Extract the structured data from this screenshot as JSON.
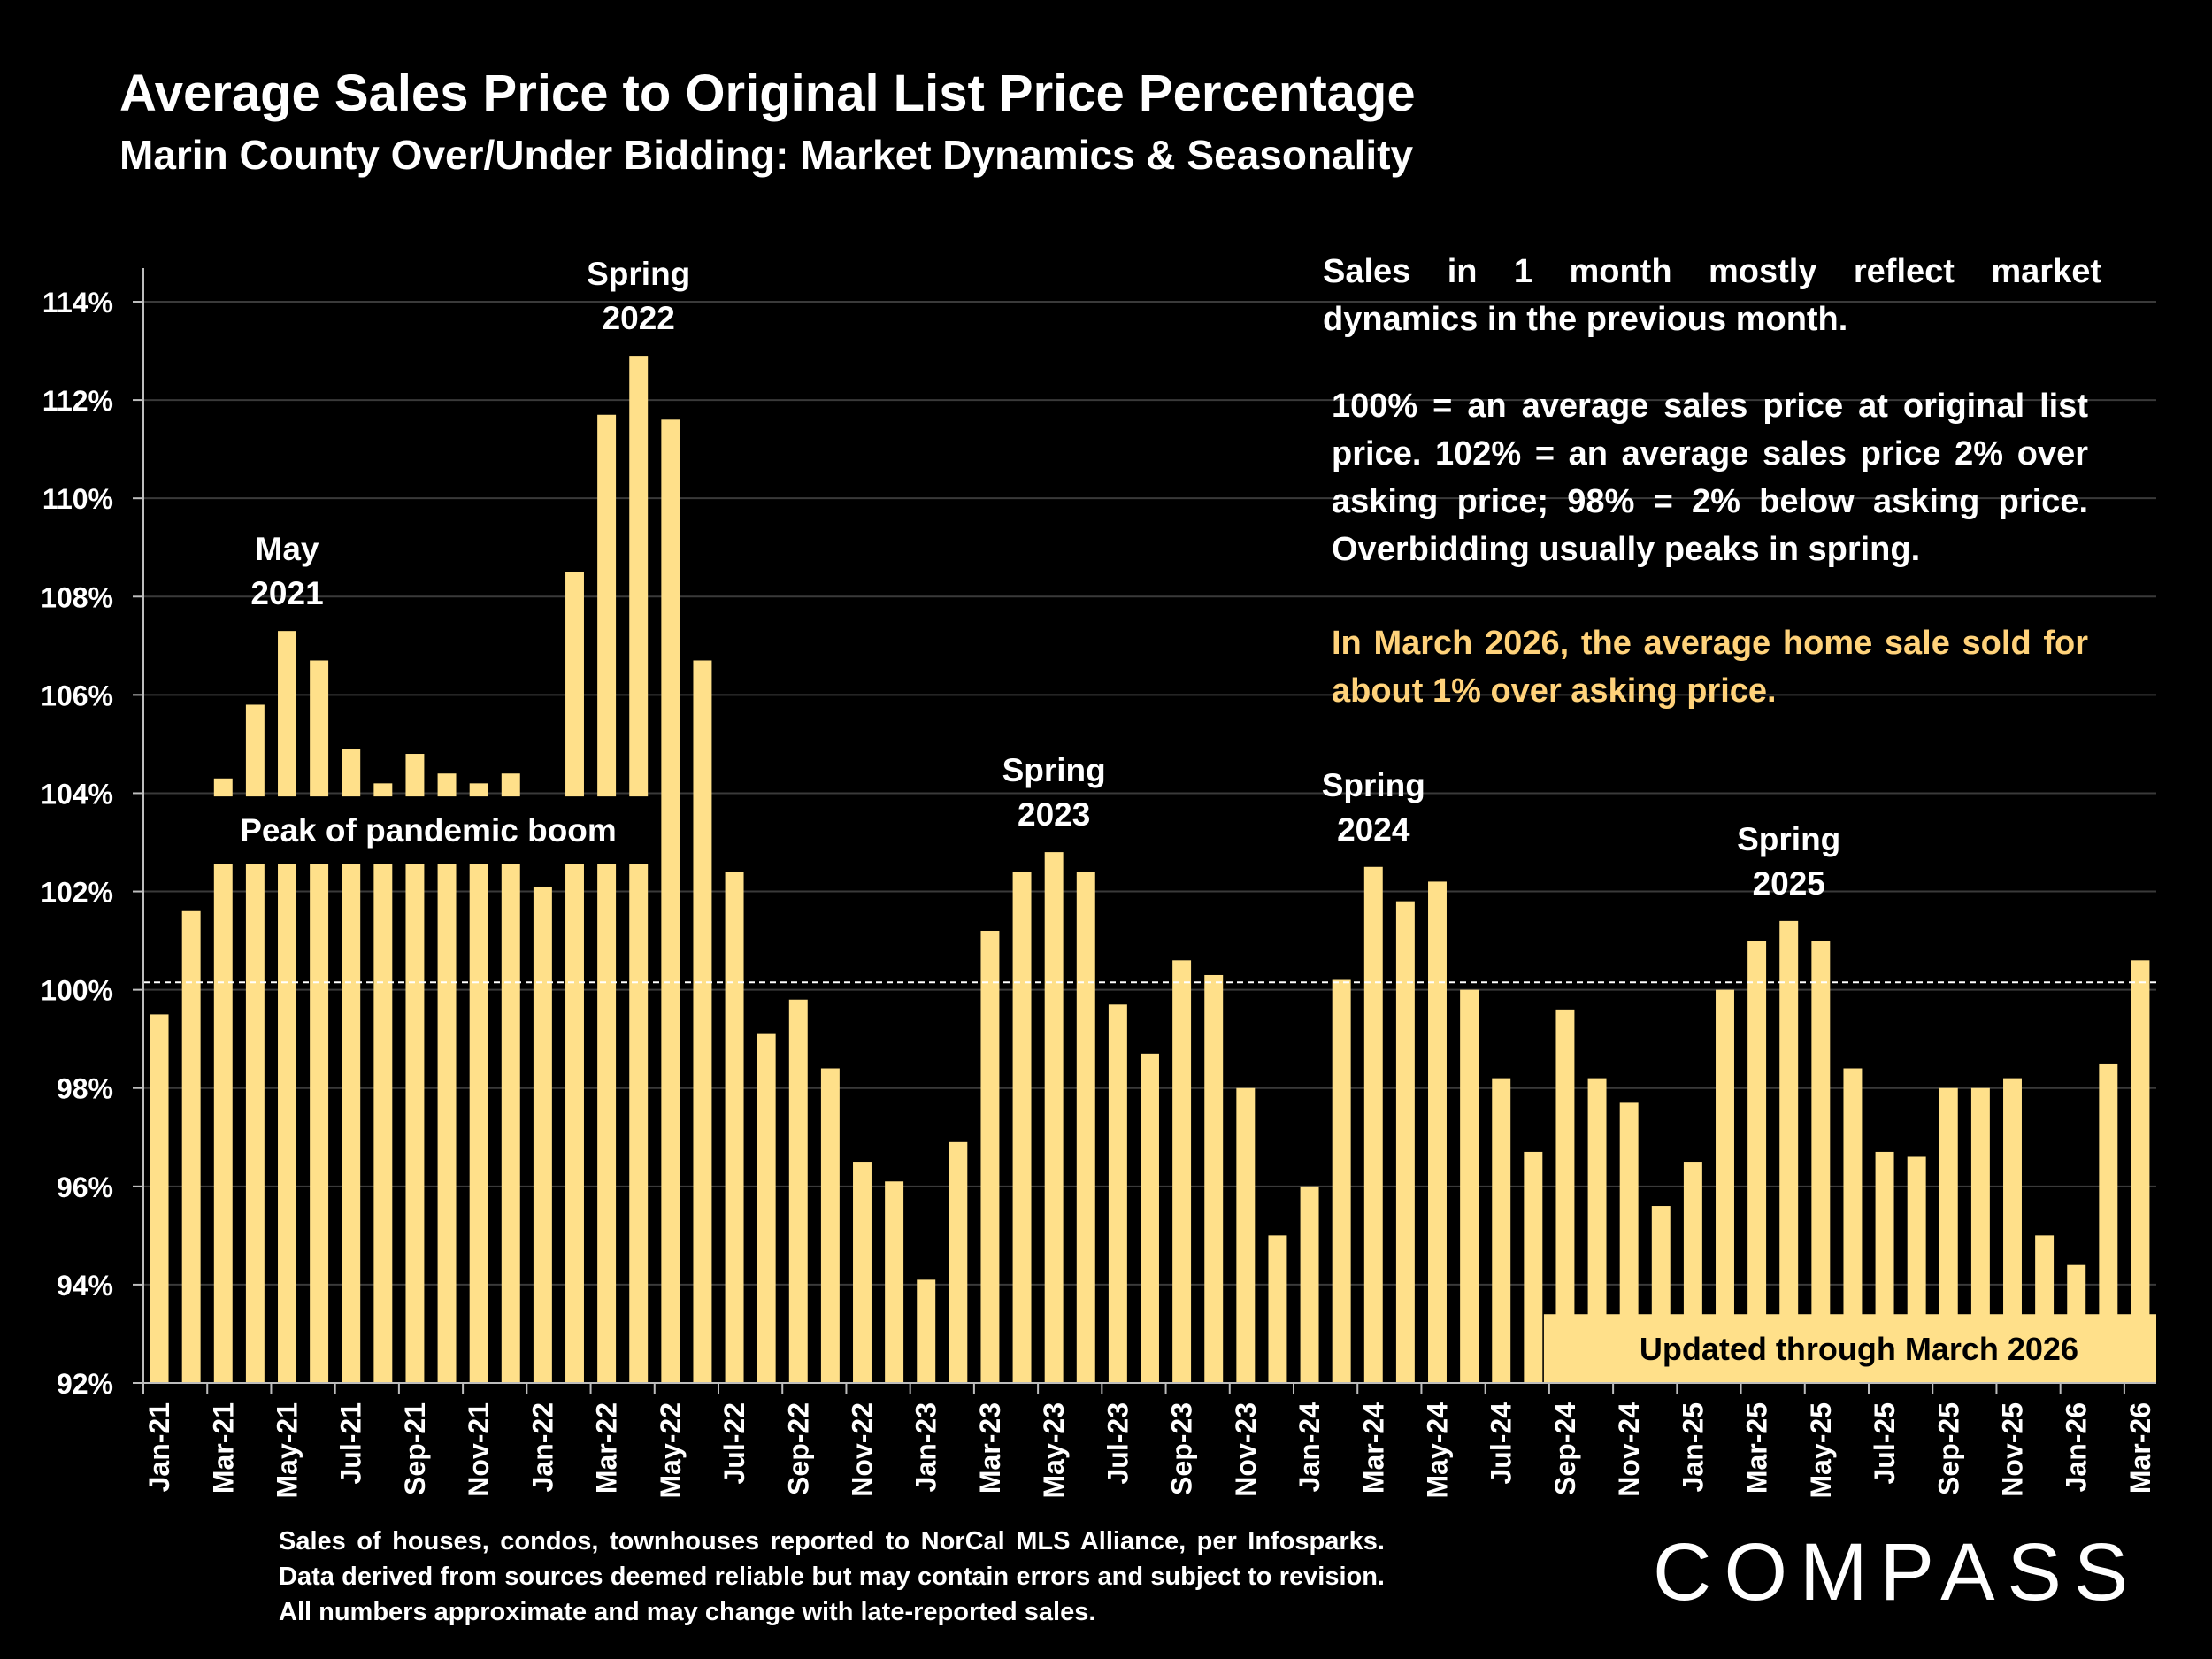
{
  "header": {
    "title": "Average Sales Price to Original List Price Percentage",
    "subtitle": "Marin County Over/Under Bidding: Market Dynamics & Seasonality"
  },
  "notes": {
    "market_lag": "Sales in 1 month mostly reflect market dynamics in the previous month.",
    "definition": "100% = an average sales price at original list price. 102% = an average sales price 2% over asking price; 98% = 2% below asking price. Overbidding usually peaks in spring.",
    "highlight": "In March 2026, the average home sale sold for about 1% over asking price."
  },
  "footnote": "Sales of houses, condos, townhouses reported to NorCal MLS Alliance, per Infosparks. Data derived from sources deemed reliable but may contain errors and subject to revision. All numbers approximate and may change with late-reported sales.",
  "logo_text": "COMPASS",
  "colors": {
    "background": "#000000",
    "bar": "#ffe08a",
    "highlight_text": "#ffd27a",
    "banner_bg": "#000000",
    "update_banner_bg": "#ffe08a"
  },
  "chart_data": {
    "type": "bar",
    "title": "Average Sales Price to Original List Price Percentage",
    "xlabel": "",
    "ylabel": "",
    "ylim": [
      92,
      114
    ],
    "y_ticks": [
      92,
      94,
      96,
      98,
      100,
      102,
      104,
      106,
      108,
      110,
      112,
      114
    ],
    "y_tick_suffix": "%",
    "grid": true,
    "reference_line": 100.15,
    "categories": [
      "Jan-21",
      "Feb-21",
      "Mar-21",
      "Apr-21",
      "May-21",
      "Jun-21",
      "Jul-21",
      "Aug-21",
      "Sep-21",
      "Oct-21",
      "Nov-21",
      "Dec-21",
      "Jan-22",
      "Feb-22",
      "Mar-22",
      "Apr-22",
      "May-22",
      "Jun-22",
      "Jul-22",
      "Aug-22",
      "Sep-22",
      "Oct-22",
      "Nov-22",
      "Dec-22",
      "Jan-23",
      "Feb-23",
      "Mar-23",
      "Apr-23",
      "May-23",
      "Jun-23",
      "Jul-23",
      "Aug-23",
      "Sep-23",
      "Oct-23",
      "Nov-23",
      "Dec-23",
      "Jan-24",
      "Feb-24",
      "Mar-24",
      "Apr-24",
      "May-24",
      "Jun-24",
      "Jul-24",
      "Aug-24",
      "Sep-24",
      "Oct-24",
      "Nov-24",
      "Dec-24",
      "Jan-25",
      "Feb-25",
      "Mar-25",
      "Apr-25",
      "May-25",
      "Jun-25",
      "Jul-25",
      "Aug-25",
      "Sep-25",
      "Oct-25",
      "Nov-25",
      "Dec-25",
      "Jan-26",
      "Feb-26",
      "Mar-26"
    ],
    "values": [
      99.5,
      101.6,
      104.3,
      105.8,
      107.3,
      106.7,
      104.9,
      104.2,
      104.8,
      104.4,
      104.2,
      104.4,
      102.1,
      108.5,
      111.7,
      112.9,
      111.6,
      106.7,
      102.4,
      99.1,
      99.8,
      98.4,
      96.5,
      96.1,
      94.1,
      96.9,
      101.2,
      102.4,
      102.8,
      102.4,
      99.7,
      98.7,
      100.6,
      100.3,
      98.0,
      95.0,
      96.0,
      100.2,
      102.5,
      101.8,
      102.2,
      100.0,
      98.2,
      96.7,
      99.6,
      98.2,
      97.7,
      95.6,
      96.5,
      100.0,
      101.0,
      101.4,
      101.0,
      98.4,
      96.7,
      96.6,
      98.0,
      98.0,
      98.2,
      95.0,
      94.4,
      98.5,
      100.6
    ],
    "x_tick_labels": [
      "Jan-21",
      "Mar-21",
      "May-21",
      "Jul-21",
      "Sep-21",
      "Nov-21",
      "Jan-22",
      "Mar-22",
      "May-22",
      "Jul-22",
      "Sep-22",
      "Nov-22",
      "Jan-23",
      "Mar-23",
      "May-23",
      "Jul-23",
      "Sep-23",
      "Nov-23",
      "Jan-24",
      "Mar-24",
      "May-24",
      "Jul-24",
      "Sep-24",
      "Nov-24",
      "Jan-25",
      "Mar-25",
      "May-25",
      "Jul-25",
      "Sep-25",
      "Nov-25",
      "Jan-26",
      "Mar-26"
    ],
    "annotations": [
      {
        "text": "May 2021",
        "lines": [
          "May",
          "2021"
        ],
        "category": "May-21"
      },
      {
        "text": "Spring 2022",
        "lines": [
          "Spring",
          "2022"
        ],
        "category": "Apr-22"
      },
      {
        "text": "Spring 2023",
        "lines": [
          "Spring",
          "2023"
        ],
        "category": "May-23"
      },
      {
        "text": "Spring 2024",
        "lines": [
          "Spring",
          "2024"
        ],
        "category": "Mar-24"
      },
      {
        "text": "Spring 2025",
        "lines": [
          "Spring",
          "2025"
        ],
        "category": "Apr-25"
      }
    ],
    "banners": {
      "peak": {
        "text": "Peak of pandemic boom",
        "from": "Mar-21",
        "to": "Apr-22",
        "value": 103.25
      },
      "updated": {
        "text": "Updated through March 2026",
        "from": "Sep-24",
        "to": "Mar-26",
        "value": 92.7
      }
    }
  }
}
